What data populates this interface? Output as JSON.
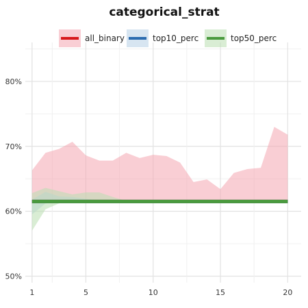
{
  "chart_data": {
    "type": "area",
    "title": "categorical_strat",
    "x_ticks": [
      1,
      5,
      10,
      15,
      20
    ],
    "y_ticks": [
      "50%",
      "60%",
      "70%",
      "80%"
    ],
    "y_tick_values": [
      50,
      60,
      70,
      80
    ],
    "xlim": [
      0.5,
      21
    ],
    "ylim": [
      49,
      86
    ],
    "grid": true,
    "legend_position": "top",
    "x": [
      1,
      2,
      3,
      4,
      5,
      6,
      7,
      8,
      9,
      10,
      11,
      12,
      13,
      14,
      15,
      16,
      17,
      18,
      19,
      20
    ],
    "series": [
      {
        "name": "all_binary",
        "color": "#d7191c",
        "band_color": "#f4a6b0",
        "values": [
          61.5,
          61.5,
          61.5,
          61.5,
          61.5,
          61.5,
          61.5,
          61.5,
          61.5,
          61.5,
          61.5,
          61.5,
          61.5,
          61.5,
          61.5,
          61.5,
          61.5,
          61.5,
          61.5,
          61.5
        ],
        "upper": [
          66.3,
          69.0,
          69.6,
          70.7,
          68.6,
          67.8,
          67.8,
          69.0,
          68.2,
          68.7,
          68.5,
          67.5,
          64.5,
          64.9,
          63.4,
          65.9,
          66.5,
          66.7,
          73.0,
          71.8
        ],
        "lower": [
          61.5,
          61.5,
          61.5,
          61.5,
          61.5,
          61.5,
          61.5,
          61.5,
          61.5,
          61.5,
          61.5,
          61.5,
          61.5,
          61.5,
          61.5,
          61.5,
          61.5,
          61.5,
          61.5,
          61.5
        ]
      },
      {
        "name": "top10_perc",
        "color": "#2b6cb0",
        "band_color": "#b7cfe6",
        "values": [
          61.5,
          61.5,
          61.5,
          61.5,
          61.5,
          61.5,
          61.5,
          61.5,
          61.5,
          61.5,
          61.5,
          61.5,
          61.5,
          61.5,
          61.5,
          61.5,
          61.5,
          61.5,
          61.5,
          61.5
        ],
        "upper": [
          61.8,
          63.0,
          62.3,
          62.2,
          61.9,
          61.7,
          61.5,
          61.5,
          61.5,
          61.5,
          61.5,
          61.5,
          61.5,
          61.5,
          61.5,
          61.5,
          61.5,
          61.5,
          61.5,
          61.5
        ],
        "lower": [
          59.5,
          61.2,
          61.4,
          61.5,
          61.5,
          61.5,
          61.5,
          61.5,
          61.5,
          61.5,
          61.5,
          61.5,
          61.5,
          61.5,
          61.5,
          61.5,
          61.5,
          61.5,
          61.5,
          61.5
        ]
      },
      {
        "name": "top50_perc",
        "color": "#4a9a3e",
        "band_color": "#b9deb0",
        "values": [
          61.5,
          61.5,
          61.5,
          61.5,
          61.5,
          61.5,
          61.5,
          61.5,
          61.5,
          61.5,
          61.5,
          61.5,
          61.5,
          61.5,
          61.5,
          61.5,
          61.5,
          61.5,
          61.5,
          61.5
        ],
        "upper": [
          62.8,
          63.6,
          63.1,
          62.6,
          62.9,
          62.9,
          62.2,
          61.6,
          61.5,
          61.5,
          61.5,
          61.5,
          61.5,
          61.5,
          61.5,
          61.5,
          61.5,
          61.5,
          61.5,
          61.5
        ],
        "lower": [
          57.0,
          60.3,
          61.2,
          61.5,
          61.5,
          61.5,
          61.5,
          61.5,
          61.5,
          61.5,
          61.5,
          61.5,
          61.5,
          61.5,
          61.5,
          61.5,
          61.5,
          61.5,
          61.5,
          61.5
        ]
      }
    ]
  }
}
